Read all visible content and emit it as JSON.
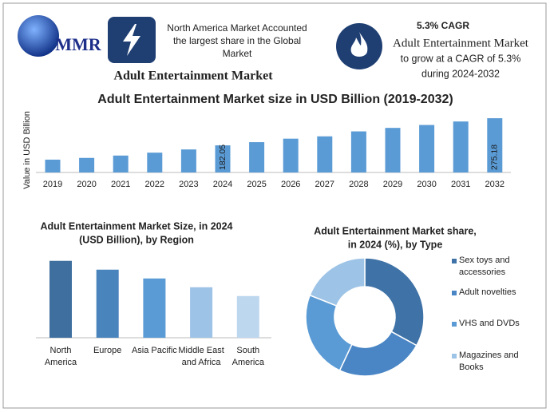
{
  "header": {
    "logo": "MMR",
    "highlight": [
      "North America Market Accounted",
      "the largest share in the Global",
      "Market"
    ],
    "title": "Adult Entertainment Market",
    "cagr": {
      "label": "5.3% CAGR",
      "lines": [
        "Adult Entertainment Market",
        "to grow at a CAGR of 5.3%",
        "during 2024-2032"
      ]
    }
  },
  "chart_data": [
    {
      "type": "bar",
      "title": [
        "Adult Entertainment Market size in USD Billion (2019-2032)"
      ],
      "ylabel": "Value in USD Billion",
      "categories": [
        "2019",
        "2020",
        "2021",
        "2022",
        "2023",
        "2024",
        "2025",
        "2026",
        "2027",
        "2028",
        "2029",
        "2030",
        "2031",
        "2032"
      ],
      "values": [
        133,
        139,
        147,
        157,
        168,
        182.05,
        193,
        205,
        213,
        230,
        242,
        252,
        264,
        275.18
      ],
      "value_labels": [
        null,
        null,
        null,
        null,
        null,
        "182.05",
        null,
        null,
        null,
        null,
        null,
        null,
        null,
        "275.18"
      ],
      "color": "#5b9bd5",
      "ylim": [
        89,
        300
      ]
    },
    {
      "type": "bar",
      "title": [
        "Adult Entertainment Market  Size, in 2024",
        "(USD Billion), by Region"
      ],
      "categories": [
        "North America",
        "Europe",
        "Asia Pacific",
        "Middle East and Africa",
        "South America"
      ],
      "values": [
        47.2,
        41.8,
        36.4,
        31.0,
        25.6
      ],
      "colors": [
        "#3e6f9e",
        "#4a84bd",
        "#5b9bd5",
        "#9dc3e6",
        "#bdd7ee"
      ],
      "ylim": [
        0,
        50
      ]
    },
    {
      "type": "pie",
      "title": [
        "Adult Entertainment Market share,",
        "in 2024 (%), by Type"
      ],
      "categories": [
        "Sex toys and accessories",
        "Adult novelties",
        "VHS and DVDs",
        "Magazines and Books"
      ],
      "values": [
        33,
        24,
        24,
        19
      ],
      "colors": [
        "#3f72a6",
        "#4a86c5",
        "#5b9bd5",
        "#9dc3e6"
      ],
      "legend": "right"
    }
  ]
}
